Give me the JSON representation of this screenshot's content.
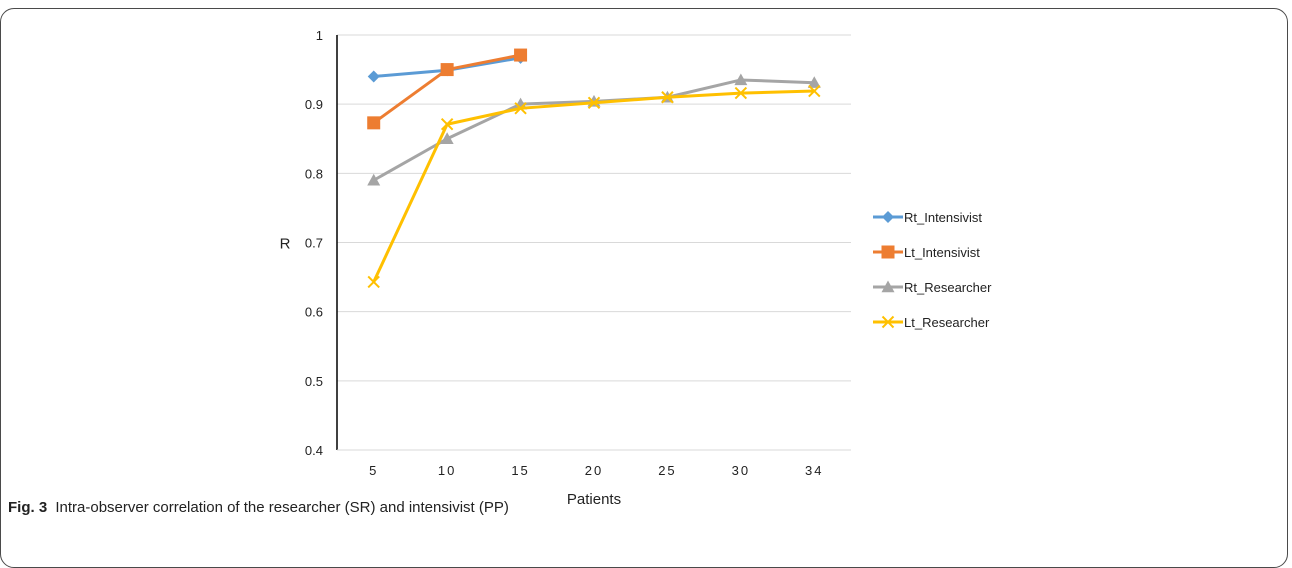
{
  "caption": {
    "label": "Fig. 3",
    "text": "Intra-observer correlation of the researcher (SR) and intensivist (PP)"
  },
  "chart_data": {
    "type": "line",
    "categories": [
      "5",
      "10",
      "15",
      "20",
      "25",
      "30",
      "34"
    ],
    "xlabel": "Patients",
    "ylabel": "R",
    "ylim": [
      0.4,
      1
    ],
    "yticks": [
      "0.4",
      "0.5",
      "0.6",
      "0.7",
      "0.8",
      "0.9",
      "1"
    ],
    "grid": true,
    "legend_position": "right",
    "series": [
      {
        "name": "Rt_Intensivist",
        "color": "#5b9bd5",
        "marker": "diamond",
        "values": [
          0.94,
          0.949,
          0.967,
          null,
          null,
          null,
          null
        ]
      },
      {
        "name": "Lt_Intensivist",
        "color": "#ed7d31",
        "marker": "square",
        "values": [
          0.873,
          0.95,
          0.971,
          null,
          null,
          null,
          null
        ]
      },
      {
        "name": "Rt_Researcher",
        "color": "#a5a5a5",
        "marker": "triangle",
        "values": [
          0.79,
          0.85,
          0.9,
          0.904,
          0.91,
          0.935,
          0.931
        ]
      },
      {
        "name": "Lt_Researcher",
        "color": "#ffc000",
        "marker": "x",
        "values": [
          0.643,
          0.871,
          0.894,
          0.902,
          0.91,
          0.916,
          0.919
        ]
      }
    ]
  }
}
